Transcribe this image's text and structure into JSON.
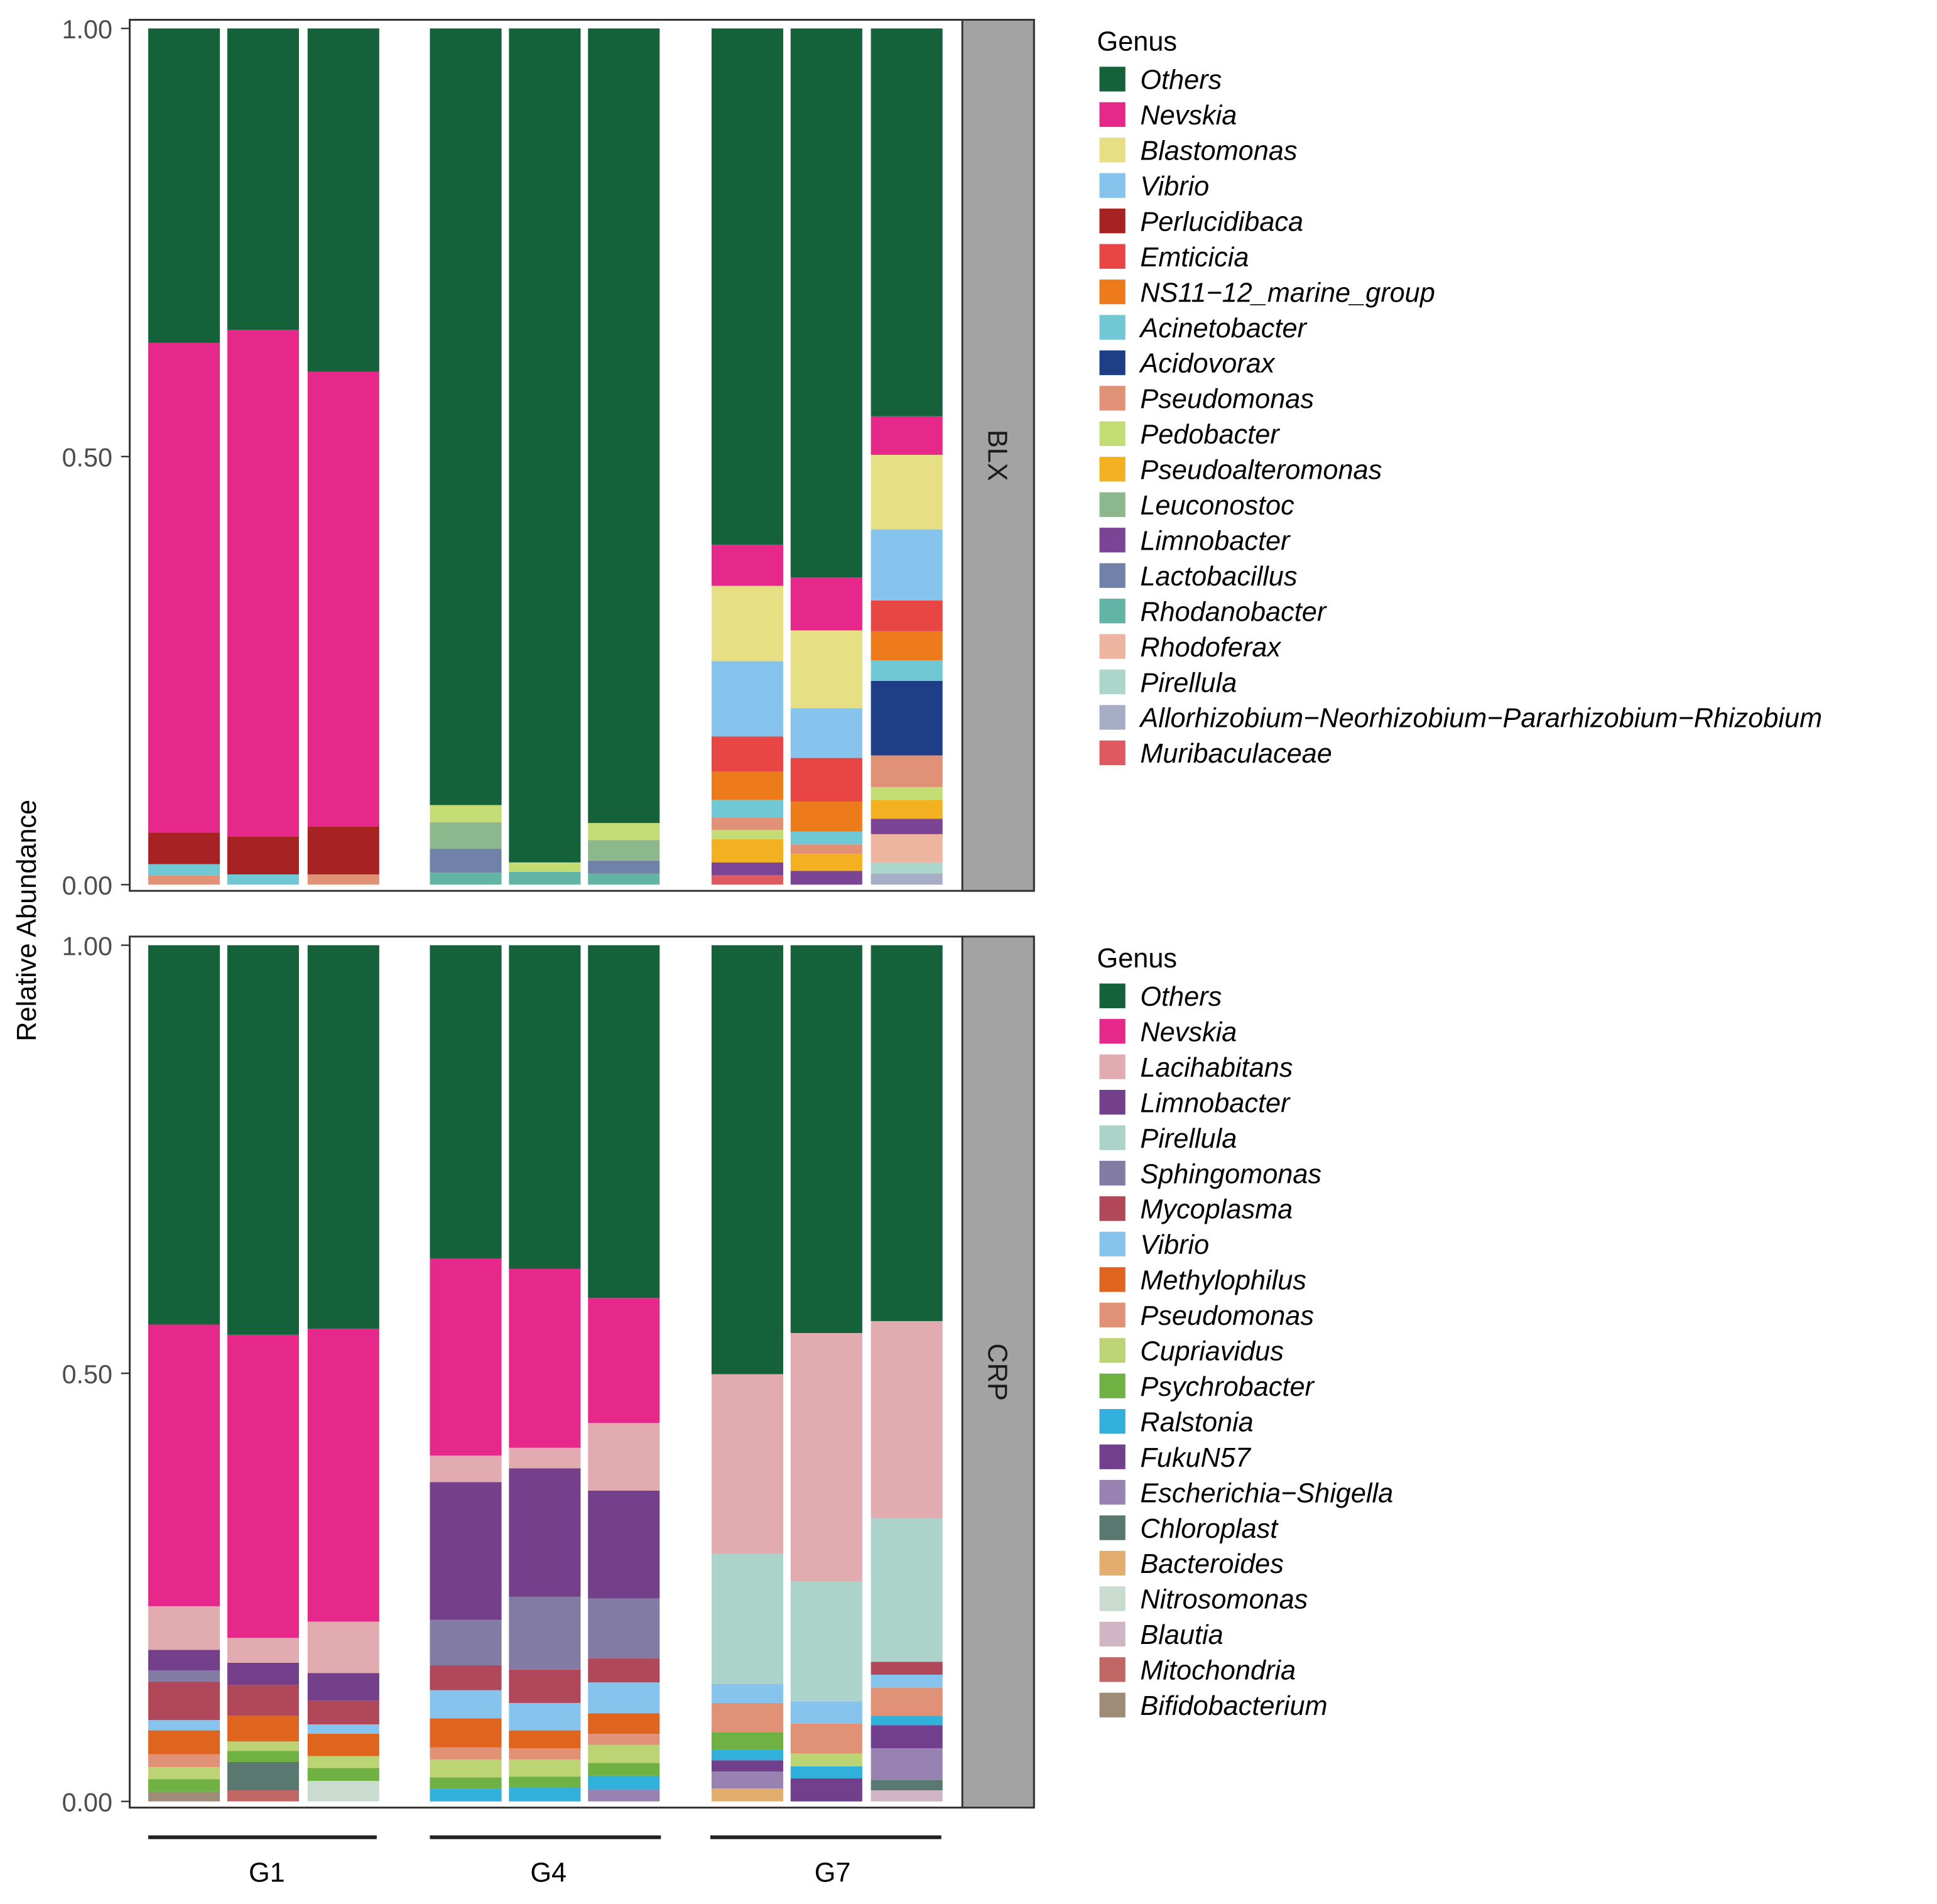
{
  "chart_data": {
    "type": "bar",
    "stacked": true,
    "ylabel": "Relative Abundance",
    "ylim": [
      0,
      1
    ],
    "yticks": [
      "0.00",
      "0.50",
      "1.00"
    ],
    "groups": [
      "G1",
      "G4",
      "G7"
    ],
    "legend_title": "Genus",
    "panels": [
      {
        "name": "BLX",
        "genera": [
          "Others",
          "Nevskia",
          "Blastomonas",
          "Vibrio",
          "Perlucidibaca",
          "Emticicia",
          "NS11−12_marine_group",
          "Acinetobacter",
          "Acidovorax",
          "Pseudomonas",
          "Pedobacter",
          "Pseudoalteromonas",
          "Leuconostoc",
          "Limnobacter",
          "Lactobacillus",
          "Rhodanobacter",
          "Rhodoferax",
          "Pirellula",
          "Allorhizobium−Neorhizobium−Pararhizobium−Rhizobium",
          "Muribaculaceae"
        ],
        "colors": [
          "#14613a",
          "#e5288a",
          "#e6df84",
          "#86c4ee",
          "#a72323",
          "#e84545",
          "#ed7b1c",
          "#6fc8d4",
          "#1e3f87",
          "#e19176",
          "#c3dc73",
          "#f3b121",
          "#8db78c",
          "#7c4495",
          "#7082a8",
          "#62b5a4",
          "#edb4a0",
          "#acd5cc",
          "#a7acc7",
          "#de5960"
        ],
        "bars": [
          {
            "group": "G1",
            "values": [
              0.367,
              0.572,
              0,
              0,
              0.037,
              0,
              0,
              0.013,
              0,
              0.011,
              0,
              0,
              0,
              0,
              0,
              0,
              0,
              0,
              0,
              0
            ]
          },
          {
            "group": "G1",
            "values": [
              0.352,
              0.592,
              0,
              0,
              0.044,
              0,
              0,
              0.012,
              0,
              0,
              0,
              0,
              0,
              0,
              0,
              0,
              0,
              0,
              0,
              0
            ]
          },
          {
            "group": "G1",
            "values": [
              0.401,
              0.531,
              0,
              0,
              0.056,
              0,
              0,
              0,
              0,
              0.012,
              0,
              0,
              0,
              0,
              0,
              0,
              0,
              0,
              0,
              0
            ]
          },
          {
            "group": "G4",
            "values": [
              0.907,
              0,
              0,
              0,
              0,
              0,
              0,
              0,
              0,
              0,
              0.02,
              0,
              0.031,
              0,
              0.028,
              0.014,
              0,
              0,
              0,
              0
            ]
          },
          {
            "group": "G4",
            "values": [
              0.974,
              0,
              0,
              0,
              0,
              0,
              0,
              0,
              0,
              0,
              0.011,
              0,
              0,
              0,
              0,
              0.015,
              0,
              0,
              0,
              0
            ]
          },
          {
            "group": "G4",
            "values": [
              0.928,
              0,
              0,
              0,
              0,
              0,
              0,
              0,
              0,
              0,
              0.02,
              0,
              0.024,
              0,
              0.015,
              0.013,
              0,
              0,
              0,
              0
            ]
          },
          {
            "group": "G7",
            "values": [
              0.603,
              0.048,
              0.088,
              0.088,
              0,
              0.041,
              0.033,
              0.021,
              0,
              0.014,
              0.011,
              0.027,
              0,
              0.015,
              0,
              0,
              0,
              0,
              0,
              0.011
            ]
          },
          {
            "group": "G7",
            "values": [
              0.642,
              0.062,
              0.091,
              0.058,
              0,
              0.051,
              0.035,
              0.015,
              0,
              0.011,
              0,
              0.02,
              0,
              0.016,
              0,
              0,
              0,
              0,
              0,
              0
            ]
          },
          {
            "group": "G7",
            "values": [
              0.453,
              0.045,
              0.087,
              0.083,
              0,
              0.036,
              0.034,
              0.024,
              0.087,
              0.037,
              0.015,
              0.022,
              0,
              0.018,
              0,
              0,
              0.033,
              0.013,
              0.013,
              0
            ]
          }
        ]
      },
      {
        "name": "CRP",
        "genera": [
          "Others",
          "Nevskia",
          "Lacihabitans",
          "Limnobacter",
          "Pirellula",
          "Sphingomonas",
          "Mycoplasma",
          "Vibrio",
          "Methylophilus",
          "Pseudomonas",
          "Cupriavidus",
          "Psychrobacter",
          "Ralstonia",
          "FukuN57",
          "Escherichia−Shigella",
          "Chloroplast",
          "Bacteroides",
          "Nitrosomonas",
          "Blautia",
          "Mitochondria",
          "Bifidobacterium"
        ],
        "colors": [
          "#14613a",
          "#e5288a",
          "#e2abb0",
          "#74408c",
          "#acd3ca",
          "#827ba4",
          "#b0485a",
          "#86c4ee",
          "#df651e",
          "#e19176",
          "#bdd474",
          "#6fb142",
          "#31b0dc",
          "#723f8c",
          "#9882b2",
          "#587870",
          "#e3ad6e",
          "#cadbcf",
          "#d0b5c4",
          "#c06766",
          "#9e8c78"
        ],
        "bars": [
          {
            "group": "G1",
            "values": [
              0.442,
              0.329,
              0.051,
              0.024,
              0,
              0.013,
              0.045,
              0.012,
              0.028,
              0.015,
              0.014,
              0.015,
              0,
              0,
              0,
              0,
              0,
              0,
              0,
              0,
              0.011
            ]
          },
          {
            "group": "G1",
            "values": [
              0.454,
              0.354,
              0.029,
              0.026,
              0,
              0,
              0.036,
              0,
              0.03,
              0,
              0.011,
              0.013,
              0,
              0,
              0,
              0.033,
              0,
              0,
              0,
              0.013,
              0
            ]
          },
          {
            "group": "G1",
            "values": [
              0.448,
              0.342,
              0.06,
              0.032,
              0,
              0,
              0.028,
              0.011,
              0.026,
              0,
              0.014,
              0.015,
              0,
              0,
              0,
              0,
              0,
              0.024,
              0,
              0,
              0
            ]
          },
          {
            "group": "G4",
            "values": [
              0.365,
              0.23,
              0.031,
              0.161,
              0,
              0.053,
              0.029,
              0.033,
              0.034,
              0.014,
              0.021,
              0.013,
              0.015,
              0,
              0,
              0,
              0,
              0,
              0,
              0,
              0
            ]
          },
          {
            "group": "G4",
            "values": [
              0.378,
              0.209,
              0.024,
              0.15,
              0,
              0.085,
              0.039,
              0.032,
              0.021,
              0.013,
              0.02,
              0.013,
              0.016,
              0,
              0,
              0,
              0,
              0,
              0,
              0,
              0
            ]
          },
          {
            "group": "G4",
            "values": [
              0.41,
              0.146,
              0.079,
              0.126,
              0,
              0.07,
              0.028,
              0.036,
              0.024,
              0.013,
              0.021,
              0.015,
              0.016,
              0,
              0.014,
              0,
              0,
              0,
              0,
              0,
              0
            ]
          },
          {
            "group": "G7",
            "values": [
              0.501,
              0,
              0.21,
              0,
              0.152,
              0,
              0,
              0.022,
              0,
              0.034,
              0,
              0.021,
              0.012,
              0.013,
              0.02,
              0,
              0.015,
              0,
              0,
              0,
              0
            ]
          },
          {
            "group": "G7",
            "values": [
              0.452,
              0,
              0.29,
              0,
              0.14,
              0,
              0,
              0.026,
              0,
              0.035,
              0.015,
              0,
              0.014,
              0.027,
              0,
              0,
              0,
              0,
              0,
              0,
              0
            ]
          },
          {
            "group": "G7",
            "values": [
              0.438,
              0,
              0.23,
              0,
              0.168,
              0,
              0.015,
              0.015,
              0,
              0.033,
              0,
              0,
              0.011,
              0.027,
              0.037,
              0.012,
              0,
              0,
              0.013,
              0,
              0
            ]
          }
        ]
      }
    ]
  }
}
